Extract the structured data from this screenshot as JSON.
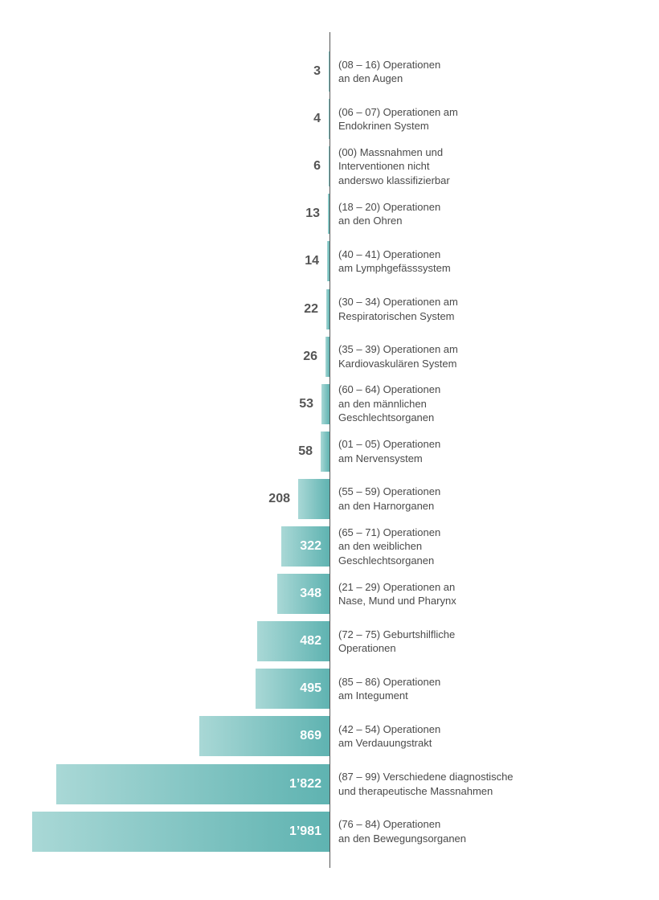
{
  "chart_data": {
    "type": "bar",
    "orientation": "horizontal",
    "xlim": [
      0,
      1981
    ],
    "colors": {
      "bar_dark": "#5fb3b1",
      "bar_light": "#a9d8d6",
      "value_dark": "#555555",
      "value_light": "#ffffff"
    },
    "categories": [
      "(08 – 16) Operationen\nan den Augen",
      "(06 – 07) Operationen am\nEndokrinen System",
      "(00) Massnahmen und\nInterventionen nicht\nanderswo klassifizierbar",
      "(18 – 20) Operationen\nan den Ohren",
      "(40 – 41)  Operationen\nam Lymphgefässsystem",
      "(30 – 34) Operationen am\nRespiratorischen System",
      "(35 – 39) Operationen am\nKardiovaskulären System",
      "(60 – 64) Operationen\nan den männlichen\nGeschlechtsorganen",
      "(01 – 05) Operationen\nam Nervensystem",
      "(55 – 59) Operationen\nan den Harnorganen",
      "(65 – 71) Operationen\nan den weiblichen\nGeschlechtsorganen",
      "(21 – 29) Operationen an\nNase, Mund und Pharynx",
      "(72 – 75) Geburtshilfliche\nOperationen",
      "(85 – 86) Operationen\nam Integument",
      "(42 – 54) Operationen\nam Verdauungstrakt",
      "(87 – 99) Verschiedene diagnostische\nund therapeutische Massnahmen",
      "(76 – 84) Operationen\nan den Bewegungsorganen"
    ],
    "values": [
      3,
      4,
      6,
      13,
      14,
      22,
      26,
      53,
      58,
      208,
      322,
      348,
      482,
      495,
      869,
      1822,
      1981
    ],
    "value_labels": [
      "3",
      "4",
      "6",
      "13",
      "14",
      "22",
      "26",
      "53",
      "58",
      "208",
      "322",
      "348",
      "482",
      "495",
      "869",
      "1’822",
      "1’981"
    ]
  }
}
